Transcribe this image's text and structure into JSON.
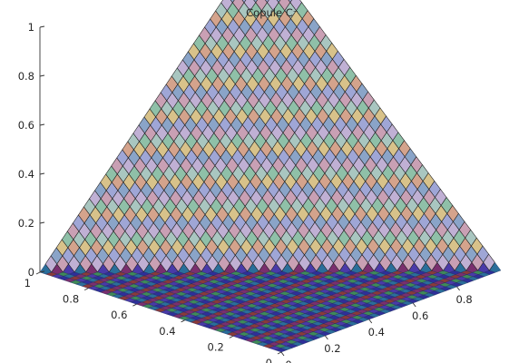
{
  "chart_data": {
    "type": "surface",
    "title": "Copule C⁻",
    "xlabel": "",
    "ylabel": "",
    "zlabel": "",
    "xlim": [
      0,
      1
    ],
    "ylim": [
      0,
      1
    ],
    "zlim": [
      0,
      1
    ],
    "x_ticks": [
      "0",
      "0.2",
      "0.4",
      "0.6",
      "0.8"
    ],
    "y_ticks": [
      "0",
      "0.2",
      "0.4",
      "0.6",
      "0.8",
      "1"
    ],
    "z_ticks": [
      "0",
      "0.2",
      "0.4",
      "0.6",
      "0.8",
      "1"
    ],
    "surface": {
      "function": "max(u + v - 1, 0)",
      "grid_n": 40,
      "mesh_colors": [
        "#c9a0b4",
        "#a9c6c0",
        "#d8c28a",
        "#9fa6d6",
        "#c0b0d4",
        "#8fc0a8",
        "#d4a38c",
        "#8aa4c8"
      ],
      "edge_color": "#1a1a1a",
      "floor_colors": [
        "#2e2f9a",
        "#7a2f6e",
        "#3f8a58",
        "#2a6e9a",
        "#8a3a3a",
        "#4a3aa8"
      ]
    },
    "grid": false
  }
}
